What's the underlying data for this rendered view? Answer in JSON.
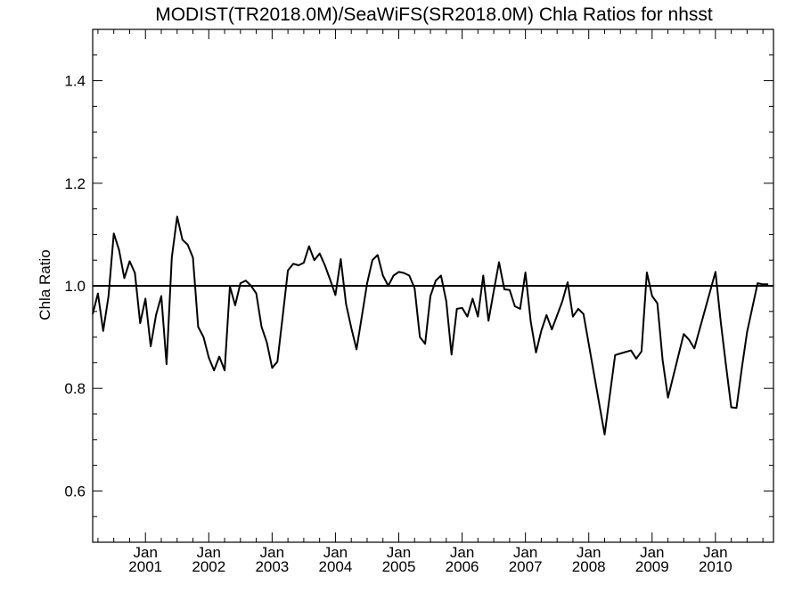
{
  "chart_data": {
    "type": "line",
    "title": "MODIST(TR2018.0M)/SeaWiFS(SR2018.0M)  Chla Ratios for nhsst",
    "xlabel": "",
    "ylabel": "Chla Ratio",
    "xlim": [
      "2000-03",
      "2010-12"
    ],
    "ylim": [
      0.5,
      1.5
    ],
    "y_ticks": [
      0.6,
      0.8,
      1.0,
      1.2,
      1.4
    ],
    "y_tick_labels": [
      "0.6",
      "0.8",
      "1.0",
      "1.2",
      "1.4"
    ],
    "x_ticks": [
      "2001-01",
      "2002-01",
      "2003-01",
      "2004-01",
      "2005-01",
      "2006-01",
      "2007-01",
      "2008-01",
      "2009-01",
      "2010-01"
    ],
    "x_tick_labels_month": [
      "Jan",
      "Jan",
      "Jan",
      "Jan",
      "Jan",
      "Jan",
      "Jan",
      "Jan",
      "Jan",
      "Jan"
    ],
    "x_tick_labels_year": [
      "2001",
      "2002",
      "2003",
      "2004",
      "2005",
      "2006",
      "2007",
      "2008",
      "2009",
      "2010"
    ],
    "reference_line": 1.0,
    "grid": false,
    "series": [
      {
        "color": "#000000",
        "x": [
          "2000-03",
          "2000-04",
          "2000-05",
          "2000-06",
          "2000-07",
          "2000-08",
          "2000-09",
          "2000-10",
          "2000-11",
          "2000-12",
          "2001-01",
          "2001-02",
          "2001-03",
          "2001-04",
          "2001-05",
          "2001-06",
          "2001-07",
          "2001-08",
          "2001-09",
          "2001-10",
          "2001-11",
          "2001-12",
          "2002-01",
          "2002-02",
          "2002-03",
          "2002-04",
          "2002-05",
          "2002-06",
          "2002-07",
          "2002-08",
          "2002-09",
          "2002-10",
          "2002-11",
          "2002-12",
          "2003-01",
          "2003-02",
          "2003-03",
          "2003-04",
          "2003-05",
          "2003-06",
          "2003-07",
          "2003-08",
          "2003-09",
          "2003-10",
          "2003-11",
          "2003-12",
          "2004-01",
          "2004-02",
          "2004-03",
          "2004-04",
          "2004-05",
          "2004-06",
          "2004-07",
          "2004-08",
          "2004-09",
          "2004-10",
          "2004-11",
          "2004-12",
          "2005-01",
          "2005-02",
          "2005-03",
          "2005-04",
          "2005-05",
          "2005-06",
          "2005-07",
          "2005-08",
          "2005-09",
          "2005-10",
          "2005-11",
          "2005-12",
          "2006-01",
          "2006-02",
          "2006-03",
          "2006-04",
          "2006-05",
          "2006-06",
          "2006-07",
          "2006-08",
          "2006-09",
          "2006-10",
          "2006-11",
          "2006-12",
          "2007-01",
          "2007-02",
          "2007-03",
          "2007-04",
          "2007-05",
          "2007-06",
          "2007-08",
          "2007-09",
          "2007-10",
          "2007-11",
          "2007-12",
          "2008-04",
          "2008-06",
          "2008-07",
          "2008-09",
          "2008-10",
          "2008-11",
          "2008-12",
          "2009-01",
          "2009-02",
          "2009-03",
          "2009-04",
          "2009-07",
          "2009-08",
          "2009-09",
          "2010-01",
          "2010-02",
          "2010-03",
          "2010-04",
          "2010-05",
          "2010-06",
          "2010-07",
          "2010-09",
          "2010-10",
          "2010-11"
        ],
        "values": [
          0.945,
          0.985,
          0.912,
          0.98,
          1.102,
          1.07,
          1.015,
          1.048,
          1.025,
          0.927,
          0.975,
          0.882,
          0.943,
          0.98,
          0.847,
          1.055,
          1.135,
          1.09,
          1.08,
          1.055,
          0.92,
          0.9,
          0.86,
          0.835,
          0.862,
          0.835,
          0.999,
          0.962,
          1.005,
          1.01,
          1.0,
          0.985,
          0.92,
          0.89,
          0.84,
          0.852,
          0.94,
          1.03,
          1.043,
          1.04,
          1.045,
          1.077,
          1.05,
          1.063,
          1.04,
          1.012,
          0.982,
          1.052,
          0.965,
          0.918,
          0.876,
          0.94,
          1.005,
          1.05,
          1.06,
          1.02,
          1.0,
          1.02,
          1.027,
          1.025,
          1.02,
          0.995,
          0.9,
          0.887,
          0.98,
          1.01,
          1.02,
          0.97,
          0.866,
          0.955,
          0.957,
          0.94,
          0.975,
          0.94,
          1.02,
          0.932,
          0.99,
          1.046,
          0.993,
          0.992,
          0.96,
          0.955,
          1.026,
          0.93,
          0.87,
          0.912,
          0.943,
          0.915,
          0.97,
          1.007,
          0.94,
          0.955,
          0.945,
          0.71,
          0.865,
          0.868,
          0.874,
          0.858,
          0.872,
          1.026,
          0.98,
          0.966,
          0.855,
          0.782,
          0.906,
          0.895,
          0.878,
          1.027,
          0.93,
          0.845,
          0.763,
          0.762,
          0.84,
          0.91,
          1.005,
          1.003,
          1.003
        ]
      }
    ]
  }
}
